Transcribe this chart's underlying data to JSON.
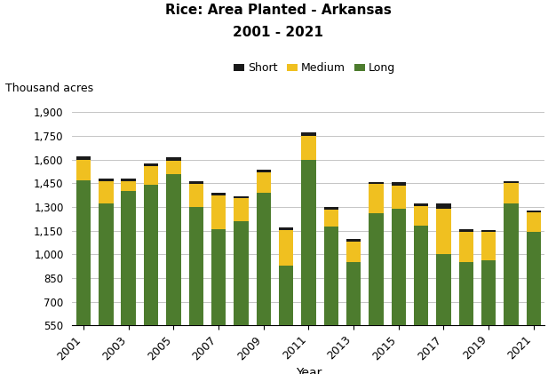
{
  "title_line1": "Rice: Area Planted - Arkansas",
  "title_line2": "2001 - 2021",
  "xlabel": "Year",
  "ylabel_text": "Thousand acres",
  "years": [
    2001,
    2002,
    2003,
    2004,
    2005,
    2006,
    2007,
    2008,
    2009,
    2010,
    2011,
    2012,
    2013,
    2014,
    2015,
    2016,
    2017,
    2018,
    2019,
    2020,
    2021
  ],
  "long": [
    1470,
    1320,
    1400,
    1440,
    1510,
    1300,
    1160,
    1210,
    1390,
    930,
    1600,
    1175,
    950,
    1260,
    1290,
    1180,
    1000,
    950,
    960,
    1320,
    1140
  ],
  "medium": [
    130,
    145,
    65,
    120,
    80,
    145,
    215,
    145,
    130,
    225,
    150,
    110,
    130,
    185,
    145,
    125,
    290,
    195,
    180,
    130,
    125
  ],
  "short": [
    20,
    15,
    15,
    15,
    25,
    20,
    15,
    15,
    15,
    15,
    20,
    15,
    15,
    15,
    20,
    20,
    30,
    15,
    15,
    15,
    15
  ],
  "color_long": "#4d7c2e",
  "color_medium": "#f0c020",
  "color_short": "#1a1a1a",
  "ylim_min": 550,
  "ylim_max": 1900,
  "yticks": [
    550,
    700,
    850,
    1000,
    1150,
    1300,
    1450,
    1600,
    1750,
    1900
  ],
  "ytick_labels": [
    "550",
    "700",
    "850",
    "1,000",
    "1,150",
    "1,300",
    "1,450",
    "1,600",
    "1,750",
    "1,900"
  ],
  "bar_width": 0.65
}
